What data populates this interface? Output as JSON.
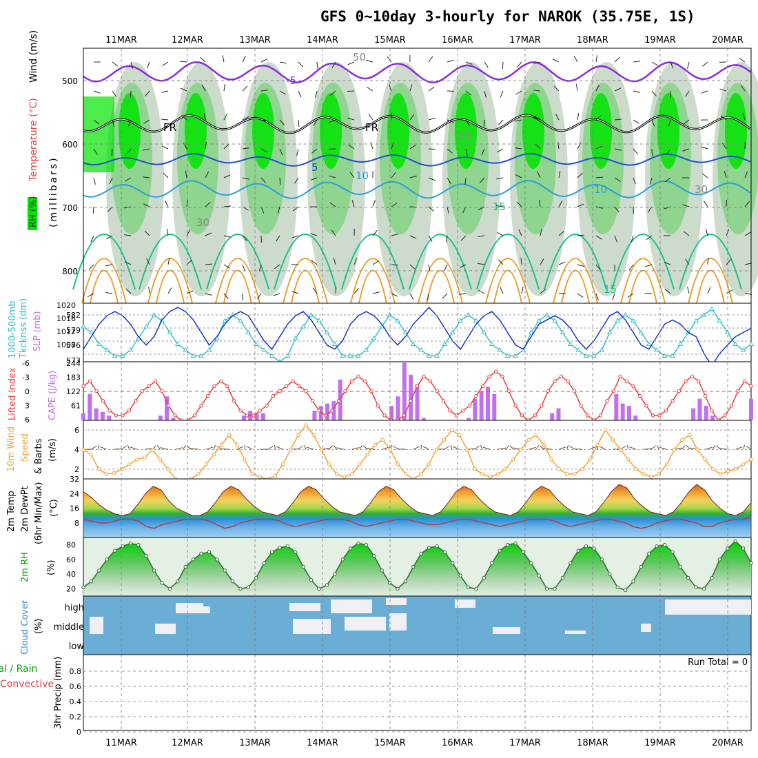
{
  "title": "GFS 0~10day 3-hourly for NAROK (35.75E, 1S)",
  "dates": [
    "11MAR",
    "12MAR",
    "13MAR",
    "14MAR",
    "15MAR",
    "16MAR",
    "17MAR",
    "18MAR",
    "19MAR",
    "20MAR"
  ],
  "colors": {
    "rh_green": "#00e400",
    "rh_mid": "#7fd27f",
    "rh_light": "#c7d7c7",
    "temp_purple": "#8a2be2",
    "temp_blue": "#1e50c8",
    "temp_lightblue": "#2a9fd8",
    "temp_teal": "#19c08c",
    "temp_orange": "#e8a030",
    "slp_blue": "#1432c8",
    "thick_cyan": "#30c0c8",
    "li_red": "#e83c3c",
    "cape_purple": "#c070f0",
    "wind_orange": "#f0a030",
    "cloud_blue": "#6aaed6"
  },
  "panels": {
    "upper_air": {
      "ylabel_rh": "RH (%)",
      "ylabel_temp": "Temperature (°C)",
      "ylabel_wind": "Wind (m/s)",
      "ylabel_p": "(millibars)",
      "yticks": [
        "500",
        "600",
        "700",
        "800"
      ],
      "contour_labels": [
        "-5",
        "5",
        "10",
        "10",
        "15",
        "15",
        "FR",
        "FR",
        "30",
        "30",
        "50",
        "50"
      ]
    },
    "slp": {
      "label_a": "1000-500mb",
      "label_b": "Tkcknss (dm)",
      "label_c": "SLP (mb)",
      "yticks_left": [
        "582",
        "579",
        "576",
        "573"
      ],
      "yticks_right": [
        "1020",
        "1016",
        "1012",
        "1008"
      ]
    },
    "li": {
      "label_a": "Lifted Index",
      "label_b": "CAPE (J/kg)",
      "yticks_left": [
        "-6",
        "-3",
        "0",
        "3",
        "6"
      ],
      "yticks_right": [
        "244",
        "183",
        "122",
        "61"
      ]
    },
    "wind10": {
      "label_a": "10m Wind",
      "label_b": "Speed",
      "label_c": "(m/s)",
      "label_d": "& Barbs",
      "yticks": [
        "2",
        "4",
        "6"
      ]
    },
    "temp2m": {
      "label_a": "2m Temp",
      "label_b": "2m DewPt",
      "label_c": "(6hr Min/Max)",
      "label_d": "(°C)",
      "yticks": [
        "8",
        "16",
        "24",
        "32"
      ]
    },
    "rh2m": {
      "label_a": "2m RH",
      "label_b": "(%)",
      "yticks": [
        "20",
        "40",
        "60",
        "80"
      ]
    },
    "cloud": {
      "label_a": "Cloud Cover",
      "label_b": "(%)",
      "levels": [
        "high",
        "middle",
        "low"
      ]
    },
    "precip": {
      "label_a": "tal / Rain",
      "label_b": "Convective",
      "label_c": "3hr Precip (mm)",
      "yticks": [
        "0",
        "0.2",
        "0.4",
        "0.6",
        "0.8"
      ],
      "run_total": "Run Total = 0"
    }
  },
  "chart_data": [
    {
      "type": "line",
      "name": "SLP",
      "ylabel": "SLP (mb)",
      "ylim": [
        1006,
        1020
      ],
      "series": [
        {
          "name": "SLP",
          "values": [
            1009,
            1012,
            1015,
            1017,
            1018,
            1017,
            1015,
            1012,
            1010,
            1012,
            1016,
            1018,
            1019,
            1018,
            1016,
            1013,
            1010,
            1012,
            1015,
            1017,
            1018,
            1017,
            1014,
            1011,
            1009,
            1012,
            1015,
            1017,
            1018,
            1016,
            1013,
            1010,
            1009,
            1011,
            1015,
            1017,
            1018,
            1017,
            1015,
            1012,
            1010,
            1012,
            1015,
            1017,
            1019,
            1017,
            1014,
            1011,
            1009,
            1012,
            1015,
            1017,
            1018,
            1016,
            1013,
            1010,
            1009,
            1012,
            1015,
            1016,
            1017,
            1016,
            1014,
            1011,
            1009,
            1011,
            1014,
            1017,
            1018,
            1016,
            1013,
            1010,
            1009,
            1012,
            1015,
            1016,
            1015,
            1013,
            1012,
            1008,
            1005,
            1008,
            1010,
            1012,
            1013,
            1014
          ]
        }
      ]
    },
    {
      "type": "line",
      "name": "Thickness",
      "ylabel": "Thickness (dm)",
      "ylim": [
        573,
        583
      ],
      "series": [
        {
          "name": "Thickness",
          "values": [
            579,
            578,
            576,
            575,
            574,
            574,
            575,
            577,
            579,
            581,
            580,
            578,
            576,
            575,
            574,
            574,
            575,
            577,
            580,
            581,
            580,
            578,
            576,
            575,
            574,
            573,
            574,
            577,
            579,
            581,
            580,
            578,
            576,
            574,
            574,
            574,
            575,
            577,
            579,
            581,
            580,
            578,
            576,
            575,
            574,
            574,
            576,
            578,
            580,
            581,
            580,
            578,
            576,
            575,
            574,
            574,
            575,
            578,
            580,
            581,
            580,
            578,
            576,
            575,
            574,
            574,
            575,
            578,
            580,
            581,
            580,
            578,
            576,
            575,
            574,
            574,
            576,
            578,
            580,
            581,
            582,
            580,
            578,
            576,
            575,
            576
          ]
        }
      ]
    },
    {
      "type": "bar",
      "name": "CAPE",
      "ylabel": "CAPE (J/kg)",
      "ylim": [
        0,
        244
      ],
      "values": [
        30,
        110,
        50,
        35,
        20,
        0,
        0,
        0,
        0,
        0,
        0,
        0,
        20,
        100,
        10,
        0,
        0,
        0,
        0,
        0,
        0,
        0,
        0,
        0,
        0,
        20,
        40,
        30,
        30,
        0,
        0,
        0,
        0,
        0,
        0,
        0,
        40,
        60,
        70,
        80,
        170,
        0,
        0,
        0,
        0,
        0,
        0,
        0,
        60,
        100,
        240,
        190,
        150,
        10,
        0,
        0,
        0,
        0,
        0,
        0,
        10,
        90,
        120,
        140,
        110,
        0,
        0,
        0,
        0,
        0,
        0,
        0,
        0,
        30,
        50,
        0,
        0,
        0,
        0,
        0,
        0,
        0,
        0,
        110,
        70,
        60,
        20,
        0,
        0,
        0,
        0,
        0,
        0,
        0,
        0,
        50,
        90,
        60,
        20,
        0,
        0,
        0,
        0,
        0,
        90
      ]
    },
    {
      "type": "line",
      "name": "Lifted Index",
      "ylabel": "Lifted Index",
      "ylim": [
        6,
        -6
      ],
      "series": [
        {
          "name": "Lifted Index",
          "values": [
            -1,
            -2,
            0,
            2,
            4,
            5,
            5,
            4,
            2,
            0,
            -1,
            -2,
            0,
            3,
            5,
            6,
            6,
            5,
            3,
            1,
            -1,
            -2,
            -1,
            2,
            4,
            5,
            5,
            4,
            3,
            1,
            0,
            -1,
            -2,
            -1,
            0,
            2,
            4,
            5,
            4,
            2,
            0,
            -2,
            -3,
            -2,
            0,
            3,
            5,
            6,
            6,
            5,
            2,
            -1,
            -3,
            -2,
            0,
            2,
            4,
            5,
            4,
            3,
            1,
            -1,
            -3,
            -4,
            -3,
            0,
            3,
            5,
            6,
            5,
            3,
            0,
            -2,
            -3,
            -2,
            0,
            3,
            5,
            6,
            5,
            2,
            0,
            -3,
            -2,
            -1,
            1,
            3,
            5,
            5,
            4,
            2,
            0,
            -2,
            -3,
            -2,
            1,
            4,
            6,
            5,
            3,
            0,
            -2,
            -1
          ]
        }
      ]
    },
    {
      "type": "line",
      "name": "10m Wind Speed",
      "ylabel": "Speed (m/s)",
      "ylim": [
        1,
        7
      ],
      "series": [
        {
          "name": "10m Wind Speed",
          "values": [
            4,
            3.5,
            2,
            1.5,
            1.6,
            2,
            2.5,
            3,
            3.2,
            4,
            3,
            2,
            1,
            0.8,
            1,
            1.5,
            2.5,
            3.5,
            4.5,
            5.5,
            4.5,
            3,
            1.5,
            1.2,
            1,
            1.3,
            2.5,
            4,
            5.5,
            6.5,
            5.5,
            4,
            2.5,
            1.5,
            1.2,
            1.5,
            2.5,
            3.5,
            4.5,
            5,
            4,
            2.5,
            1.5,
            1,
            1.5,
            2.5,
            4,
            5,
            6,
            5.5,
            4,
            2,
            1.5,
            1.2,
            1.5,
            2,
            3,
            4,
            5,
            5.5,
            4.5,
            3,
            2,
            1.5,
            1.5,
            2,
            3,
            4.5,
            6,
            5,
            4,
            3,
            2,
            1.5,
            1.2,
            1.5,
            2.5,
            4,
            5,
            5.5,
            4,
            3,
            2,
            1.5,
            1.8,
            2,
            2.5,
            3
          ]
        }
      ]
    },
    {
      "type": "area",
      "name": "2m Temperature",
      "ylabel": "(°C)",
      "ylim": [
        0,
        32
      ],
      "series": [
        {
          "name": "2m Temp",
          "values": [
            25,
            22,
            18,
            15,
            13,
            12,
            13,
            18,
            24,
            28,
            26,
            20,
            16,
            14,
            12,
            12,
            14,
            19,
            25,
            28,
            26,
            21,
            17,
            14,
            13,
            12,
            14,
            19,
            25,
            28,
            26,
            21,
            17,
            14,
            13,
            12,
            14,
            19,
            25,
            28,
            26,
            21,
            17,
            14,
            13,
            12,
            14,
            19,
            25,
            28,
            26,
            21,
            17,
            14,
            13,
            12,
            14,
            19,
            25,
            28,
            26,
            21,
            17,
            14,
            13,
            12,
            14,
            19,
            25,
            29,
            27,
            21,
            17,
            14,
            13,
            12,
            14,
            19,
            25,
            29,
            26,
            20,
            16,
            13,
            12,
            14,
            19
          ]
        },
        {
          "name": "2m DewPt",
          "values": [
            10,
            9,
            8,
            8,
            9,
            10,
            10,
            9,
            6,
            5,
            7,
            8,
            9,
            10,
            10,
            10,
            9,
            7,
            5,
            6,
            8,
            9,
            10,
            10,
            10,
            9,
            7,
            6,
            7,
            8,
            9,
            10,
            10,
            10,
            9,
            7,
            6,
            7,
            8,
            9,
            10,
            10,
            9,
            8,
            7,
            7,
            8,
            9,
            10,
            10,
            9,
            8,
            7,
            6,
            7,
            8,
            9,
            10,
            10,
            10,
            9,
            7,
            6,
            7,
            8,
            9,
            10,
            10,
            9,
            8,
            6,
            5,
            6,
            8,
            9,
            10,
            10,
            9,
            8,
            6,
            6,
            8,
            9,
            10,
            10,
            11
          ]
        }
      ]
    },
    {
      "type": "area",
      "name": "2m RH",
      "ylabel": "(%)",
      "ylim": [
        10,
        90
      ],
      "series": [
        {
          "name": "2m RH",
          "values": [
            22,
            30,
            45,
            60,
            72,
            78,
            82,
            80,
            65,
            45,
            28,
            20,
            30,
            50,
            60,
            68,
            70,
            60,
            45,
            30,
            20,
            22,
            35,
            55,
            70,
            76,
            78,
            70,
            50,
            32,
            20,
            25,
            40,
            60,
            75,
            82,
            80,
            65,
            45,
            28,
            20,
            30,
            50,
            68,
            76,
            78,
            70,
            55,
            38,
            22,
            20,
            35,
            55,
            72,
            80,
            82,
            70,
            55,
            38,
            20,
            20,
            35,
            55,
            72,
            78,
            75,
            60,
            40,
            22,
            18,
            30,
            50,
            68,
            78,
            80,
            70,
            50,
            35,
            22,
            20,
            35,
            60,
            75,
            85,
            75,
            55
          ]
        }
      ]
    },
    {
      "type": "bar",
      "name": "3hr Precip",
      "ylabel": "3hr Precip (mm)",
      "ylim": [
        0,
        1
      ],
      "values": []
    }
  ]
}
